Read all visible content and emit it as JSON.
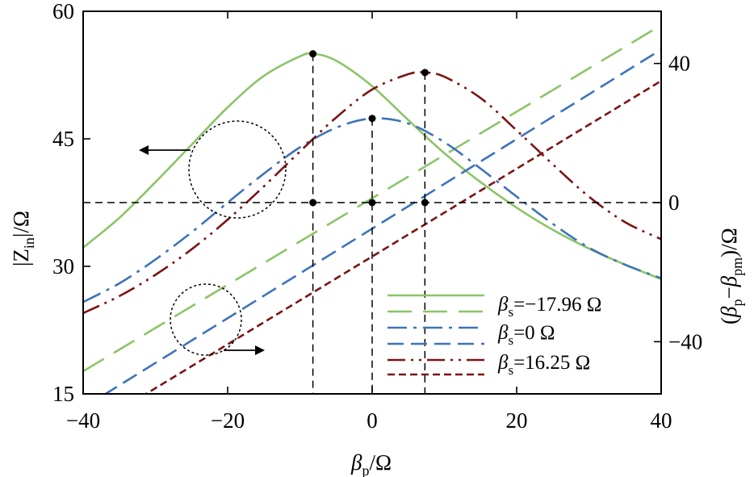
{
  "chart_data": {
    "type": "line",
    "xlabel": "β_p/Ω",
    "xlabel_parts": {
      "sym": "β",
      "sub": "p",
      "unit": "/Ω"
    },
    "ylabel_left": "|Z_in|/Ω",
    "ylabel_left_parts": {
      "pre": "|Z",
      "sub": "in",
      "post": "|/Ω"
    },
    "ylabel_right": "(β_p−β_pm)/Ω",
    "ylabel_right_parts": {
      "open": "(",
      "b1": "β",
      "s1": "p",
      "mid": "−",
      "b2": "β",
      "s2": "pm",
      "close": ")/Ω"
    },
    "xlim": [
      -40,
      40
    ],
    "ylim_left": [
      15,
      60
    ],
    "ylim_right": [
      -55,
      55
    ],
    "x_ticks": [
      -40,
      -20,
      0,
      20,
      40
    ],
    "x_tick_labels": [
      "−40",
      "−20",
      "0",
      "20",
      "40"
    ],
    "y_left_ticks": [
      15,
      30,
      45,
      60
    ],
    "y_left_tick_labels": [
      "15",
      "30",
      "45",
      "60"
    ],
    "y_right_ticks": [
      -40,
      0,
      40
    ],
    "y_right_tick_labels": [
      "−40",
      "0",
      "40"
    ],
    "legend_placement": "lower-right",
    "grid": false,
    "series": [
      {
        "name": "βs=−17.96 Ω",
        "axis": "left",
        "style": "solid",
        "color": "#8cc467",
        "x": [
          -40,
          -35,
          -30,
          -25,
          -20,
          -15,
          -10,
          -8.2,
          -5,
          0,
          5,
          10,
          15,
          20,
          25,
          30,
          35,
          40
        ],
        "y": [
          32.2,
          35.7,
          39.9,
          44.3,
          48.7,
          52.4,
          54.7,
          55.0,
          54.2,
          51.2,
          47.2,
          43.3,
          39.9,
          36.9,
          34.3,
          32.1,
          30.2,
          28.5
        ]
      },
      {
        "name": "βs=−17.96 Ω",
        "axis": "right",
        "style": "longdash",
        "color": "#8cc467",
        "x": [
          -40,
          40
        ],
        "y": [
          -48.5,
          51
        ]
      },
      {
        "name": "βs=0 Ω",
        "axis": "left",
        "style": "dashdot",
        "color": "#3d73b9",
        "x": [
          -40,
          -35,
          -30,
          -25,
          -20,
          -15,
          -10,
          -5,
          0,
          5,
          10,
          15,
          20,
          25,
          30,
          35,
          40
        ],
        "y": [
          25.8,
          28.0,
          30.8,
          34.0,
          37.5,
          40.9,
          44.0,
          46.3,
          47.4,
          46.8,
          44.6,
          41.5,
          38.2,
          35.0,
          32.2,
          30.2,
          28.6
        ]
      },
      {
        "name": "βs=0 Ω",
        "axis": "right",
        "style": "dash",
        "color": "#3d73b9",
        "x": [
          -40,
          40
        ],
        "y": [
          -59,
          44
        ]
      },
      {
        "name": "βs=16.25 Ω",
        "axis": "left",
        "style": "dashdotdot",
        "color": "#7a1414",
        "x": [
          -40,
          -35,
          -30,
          -25,
          -20,
          -15,
          -10,
          -5,
          0,
          5,
          7.3,
          10,
          15,
          20,
          25,
          30,
          35,
          40
        ],
        "y": [
          24.5,
          26.5,
          29.0,
          32.0,
          35.5,
          39.4,
          43.5,
          47.5,
          50.8,
          52.6,
          52.8,
          52.3,
          49.8,
          46.0,
          42.0,
          38.2,
          35.2,
          33.2
        ]
      },
      {
        "name": "βs=16.25 Ω",
        "axis": "right",
        "style": "shortdash",
        "color": "#7a1414",
        "x": [
          -40,
          40
        ],
        "y": [
          -66,
          35
        ]
      }
    ],
    "markers": [
      {
        "x": -8.2,
        "y": 55.0,
        "axis": "left"
      },
      {
        "x": 0,
        "y": 47.4,
        "axis": "left"
      },
      {
        "x": 7.3,
        "y": 52.8,
        "axis": "left"
      },
      {
        "x": -8.2,
        "y": 0,
        "axis": "right"
      },
      {
        "x": 0,
        "y": 0,
        "axis": "right"
      },
      {
        "x": 7.3,
        "y": 0,
        "axis": "right"
      }
    ],
    "legend": [
      {
        "sym": "β",
        "sub": "s",
        "text": "=−17.96 Ω"
      },
      {
        "sym": "β",
        "sub": "s",
        "text": "=0 Ω"
      },
      {
        "sym": "β",
        "sub": "s",
        "text": "=16.25 Ω"
      }
    ]
  }
}
